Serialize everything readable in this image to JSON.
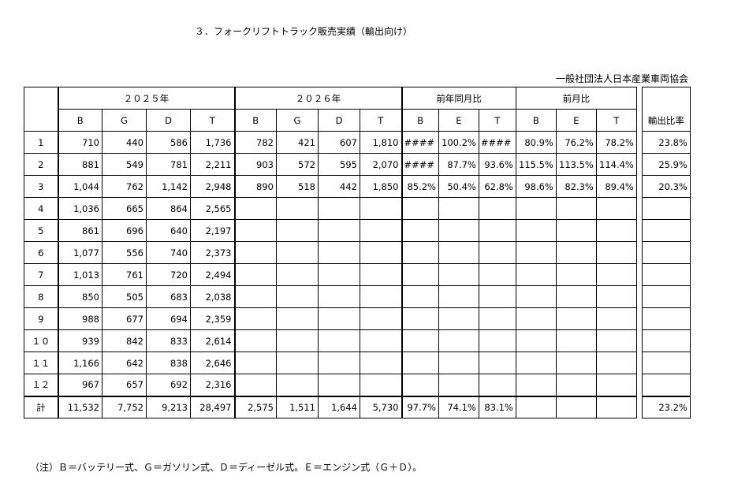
{
  "header": {
    "title": "３．フォークリフトトラック販売実績（輸出向け）",
    "source": "一般社団法人日本産業車両協会"
  },
  "table": {
    "groups": [
      "２０２５年",
      "２０２６年",
      "前年同月比",
      "前月比",
      "輸出比率"
    ],
    "subheaders": [
      "B",
      "G",
      "D",
      "T",
      "B",
      "G",
      "D",
      "T",
      "B",
      "E",
      "T",
      "B",
      "E",
      "T"
    ],
    "rows": [
      [
        "1",
        "710",
        "440",
        "586",
        "1,736",
        "782",
        "421",
        "607",
        "1,810",
        "####",
        "100.2%",
        "####",
        "80.9%",
        "76.2%",
        "78.2%",
        "23.8%"
      ],
      [
        "2",
        "881",
        "549",
        "781",
        "2,211",
        "903",
        "572",
        "595",
        "2,070",
        "####",
        "87.7%",
        "93.6%",
        "115.5%",
        "113.5%",
        "114.4%",
        "25.9%"
      ],
      [
        "3",
        "1,044",
        "762",
        "1,142",
        "2,948",
        "890",
        "518",
        "442",
        "1,850",
        "85.2%",
        "50.4%",
        "62.8%",
        "98.6%",
        "82.3%",
        "89.4%",
        "20.3%"
      ],
      [
        "4",
        "1,036",
        "665",
        "864",
        "2,565",
        null,
        null,
        null,
        null,
        null,
        null,
        null,
        null,
        null,
        null,
        null
      ],
      [
        "5",
        "861",
        "696",
        "640",
        "2,197",
        null,
        null,
        null,
        null,
        null,
        null,
        null,
        null,
        null,
        null,
        null
      ],
      [
        "6",
        "1,077",
        "556",
        "740",
        "2,373",
        null,
        null,
        null,
        null,
        null,
        null,
        null,
        null,
        null,
        null,
        null
      ],
      [
        "7",
        "1,013",
        "761",
        "720",
        "2,494",
        null,
        null,
        null,
        null,
        null,
        null,
        null,
        null,
        null,
        null,
        null
      ],
      [
        "8",
        "850",
        "505",
        "683",
        "2,038",
        null,
        null,
        null,
        null,
        null,
        null,
        null,
        null,
        null,
        null,
        null
      ],
      [
        "9",
        "988",
        "677",
        "694",
        "2,359",
        null,
        null,
        null,
        null,
        null,
        null,
        null,
        null,
        null,
        null,
        null
      ],
      [
        "１０",
        "939",
        "842",
        "833",
        "2,614",
        null,
        null,
        null,
        null,
        null,
        null,
        null,
        null,
        null,
        null,
        null
      ],
      [
        "１１",
        "1,166",
        "642",
        "838",
        "2,646",
        null,
        null,
        null,
        null,
        null,
        null,
        null,
        null,
        null,
        null,
        null
      ],
      [
        "１２",
        "967",
        "657",
        "692",
        "2,316",
        null,
        null,
        null,
        null,
        null,
        null,
        null,
        null,
        null,
        null,
        null
      ]
    ],
    "total": [
      "計",
      "11,532",
      "7,752",
      "9,213",
      "28,497",
      "2,575",
      "1,511",
      "1,644",
      "5,730",
      "97.7%",
      "74.1%",
      "83.1%",
      null,
      null,
      null,
      "23.2%"
    ]
  },
  "note": "（注）Ｂ＝バッテリー式、Ｇ＝ガソリン式、Ｄ＝ディーゼル式。Ｅ＝エンジン式（Ｇ＋Ｄ）。"
}
